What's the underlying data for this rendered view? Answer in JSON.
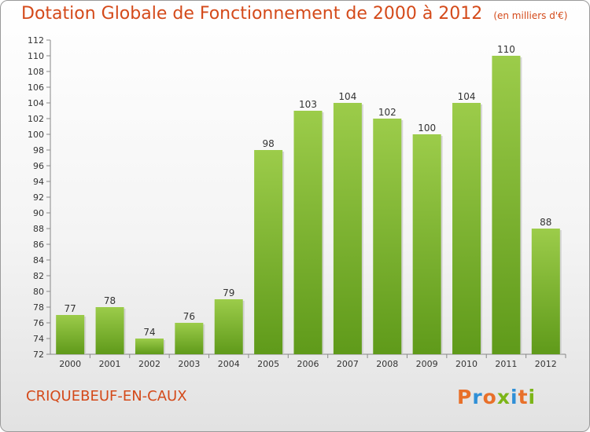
{
  "header": {
    "title": "Dotation Globale de Fonctionnement de 2000 à 2012",
    "subtitle": "(en milliers d'€)"
  },
  "footer": {
    "commune": "CRIQUEBEUF-EN-CAUX",
    "logo": "Proxiti"
  },
  "colors": {
    "title": "#d44a1a",
    "bar_light": "#9ccc4a",
    "bar_dark": "#5f9a1a",
    "logo_letters": [
      "#e8702a",
      "#2f8fd6",
      "#e8702a",
      "#7cb518",
      "#2f8fd6",
      "#e8702a",
      "#7cb518"
    ]
  },
  "chart_data": {
    "type": "bar",
    "categories": [
      "2000",
      "2001",
      "2002",
      "2003",
      "2004",
      "2005",
      "2006",
      "2007",
      "2008",
      "2009",
      "2010",
      "2011",
      "2012"
    ],
    "values": [
      77,
      78,
      74,
      76,
      79,
      98,
      103,
      104,
      102,
      100,
      104,
      110,
      88
    ],
    "data_labels": [
      "77",
      "78",
      "74",
      "76",
      "79",
      "98",
      "103",
      "104",
      "102",
      "100",
      "104",
      "110",
      "88"
    ],
    "ylim": [
      72,
      112
    ],
    "y_ticks": [
      "72",
      "74",
      "76",
      "78",
      "80",
      "82",
      "84",
      "86",
      "88",
      "90",
      "92",
      "94",
      "96",
      "98",
      "100",
      "102",
      "104",
      "106",
      "108",
      "110",
      "112"
    ],
    "grid": false,
    "legend": "none"
  }
}
